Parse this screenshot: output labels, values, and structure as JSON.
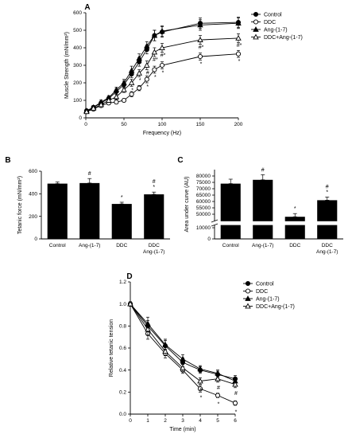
{
  "figure": {
    "panels": [
      "A",
      "B",
      "C",
      "D"
    ]
  },
  "chart_data": [
    {
      "panel": "A",
      "type": "line",
      "xlabel": "Frequency (Hz)",
      "ylabel": "Muscle Strength (mN/mm²)",
      "xlim": [
        0,
        200
      ],
      "ylim": [
        0,
        600
      ],
      "xticks": [
        0,
        50,
        100,
        150,
        200
      ],
      "yticks": [
        0,
        100,
        200,
        300,
        400,
        500,
        600
      ],
      "legend_position": "top-right",
      "x": [
        1,
        10,
        20,
        30,
        40,
        50,
        60,
        70,
        80,
        90,
        100,
        150,
        200
      ],
      "series": [
        {
          "name": "Control",
          "marker": "circle-filled",
          "values": [
            40,
            60,
            85,
            110,
            150,
            190,
            250,
            320,
            390,
            470,
            490,
            540,
            545
          ],
          "err": [
            10,
            10,
            10,
            12,
            15,
            20,
            20,
            25,
            25,
            30,
            30,
            30,
            30
          ]
        },
        {
          "name": "DDC",
          "marker": "circle-open",
          "values": [
            35,
            50,
            70,
            85,
            90,
            100,
            135,
            170,
            220,
            275,
            300,
            350,
            365
          ],
          "err": [
            10,
            10,
            10,
            10,
            10,
            10,
            15,
            15,
            20,
            20,
            20,
            20,
            20
          ]
        },
        {
          "name": "Ang-(1-7)",
          "marker": "triangle-filled",
          "values": [
            40,
            60,
            90,
            115,
            160,
            200,
            270,
            340,
            410,
            470,
            495,
            530,
            540
          ],
          "err": [
            10,
            10,
            12,
            12,
            15,
            20,
            25,
            25,
            25,
            30,
            30,
            30,
            30
          ]
        },
        {
          "name": "DDC+Ang-(1-7)",
          "marker": "triangle-open",
          "values": [
            35,
            55,
            75,
            100,
            120,
            160,
            200,
            255,
            300,
            375,
            400,
            445,
            455
          ],
          "err": [
            10,
            10,
            10,
            12,
            15,
            15,
            20,
            20,
            25,
            25,
            25,
            25,
            25
          ]
        }
      ],
      "annotations": [
        {
          "x": 60,
          "text": "*"
        },
        {
          "x": 70,
          "text": "*"
        },
        {
          "x": 80,
          "text": "#"
        },
        {
          "x": 80,
          "text": "*"
        },
        {
          "x": 90,
          "text": "#*"
        },
        {
          "x": 90,
          "text": "*"
        },
        {
          "x": 100,
          "text": "#*"
        },
        {
          "x": 100,
          "text": "*"
        },
        {
          "x": 150,
          "text": "#*"
        },
        {
          "x": 150,
          "text": "*"
        },
        {
          "x": 200,
          "text": "#*"
        },
        {
          "x": 200,
          "text": "*"
        }
      ]
    },
    {
      "panel": "B",
      "type": "bar",
      "ylabel": "Tetanic force (mN/mm²)",
      "ylim": [
        0,
        600
      ],
      "yticks": [
        0,
        200,
        400,
        600
      ],
      "categories": [
        "Control",
        "Ang-(1-7)",
        "DDC",
        "DDC\nAng-(1-7)"
      ],
      "values": [
        490,
        495,
        310,
        395
      ],
      "err": [
        15,
        40,
        15,
        20
      ],
      "annotations": [
        "",
        "#",
        "*",
        "#\n*"
      ]
    },
    {
      "panel": "C",
      "type": "bar",
      "ylabel": "Area under curve (AU)",
      "broken_axis": true,
      "ylim_lower": [
        0,
        10000
      ],
      "ylim_upper": [
        45000,
        85000
      ],
      "yticks": [
        0,
        10000,
        50000,
        55000,
        60000,
        65000,
        70000,
        75000,
        80000
      ],
      "ytick_labels": [
        "0",
        "10000",
        "50000",
        "55000",
        "60000",
        "65000",
        "70000",
        "75000",
        "80000"
      ],
      "categories": [
        "Control",
        "Ang-(1-7)",
        "DDC",
        "DDC\nAng-(1-7)"
      ],
      "values": [
        74000,
        77000,
        48000,
        61000
      ],
      "err": [
        3500,
        4000,
        2500,
        2500
      ],
      "annotations": [
        "",
        "#",
        "*",
        "#\n*"
      ]
    },
    {
      "panel": "D",
      "type": "line",
      "xlabel": "Time (min)",
      "ylabel": "Relative tetanic tension",
      "xlim": [
        0,
        6
      ],
      "ylim": [
        0,
        1.2
      ],
      "xticks": [
        0,
        1,
        2,
        3,
        4,
        5,
        6
      ],
      "yticks": [
        0.0,
        0.2,
        0.4,
        0.6,
        0.8,
        1.0,
        1.2
      ],
      "legend_position": "top-right",
      "x": [
        0,
        1,
        2,
        3,
        4,
        5,
        6
      ],
      "series": [
        {
          "name": "Control",
          "marker": "circle-filled",
          "values": [
            1.0,
            0.8,
            0.62,
            0.47,
            0.4,
            0.36,
            0.32
          ],
          "err": [
            0.02,
            0.05,
            0.05,
            0.04,
            0.03,
            0.03,
            0.03
          ]
        },
        {
          "name": "DDC",
          "marker": "circle-open",
          "values": [
            1.0,
            0.73,
            0.55,
            0.4,
            0.23,
            0.17,
            0.1
          ],
          "err": [
            0.02,
            0.05,
            0.04,
            0.03,
            0.03,
            0.02,
            0.02
          ]
        },
        {
          "name": "Ang-(1-7)",
          "marker": "triangle-filled",
          "values": [
            1.0,
            0.82,
            0.63,
            0.5,
            0.41,
            0.37,
            0.3
          ],
          "err": [
            0.02,
            0.06,
            0.05,
            0.04,
            0.03,
            0.03,
            0.03
          ]
        },
        {
          "name": "DDC+Ang-(1-7)",
          "marker": "triangle-open",
          "values": [
            1.0,
            0.77,
            0.57,
            0.42,
            0.3,
            0.32,
            0.27
          ],
          "err": [
            0.02,
            0.05,
            0.04,
            0.03,
            0.03,
            0.03,
            0.03
          ]
        }
      ],
      "annotations": [
        {
          "x": 4,
          "text": "#"
        },
        {
          "x": 4,
          "text": "*"
        },
        {
          "x": 5,
          "text": "#"
        },
        {
          "x": 5,
          "text": "*"
        },
        {
          "x": 6,
          "text": "#"
        },
        {
          "x": 6,
          "text": "*"
        }
      ]
    }
  ]
}
